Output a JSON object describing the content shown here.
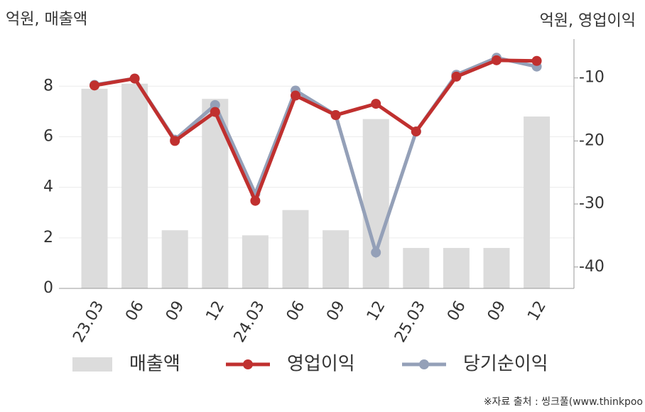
{
  "chart_data": {
    "type": "bar-line",
    "y_label": "억원, 매출액",
    "y2_label": "억원, 영업이익",
    "source": "※자료 출처 : 씽크풀(www.thinkpoo",
    "categories": [
      "23.03",
      "06",
      "09",
      "12",
      "24.03",
      "06",
      "09",
      "12",
      "25.03",
      "06",
      "09",
      "12"
    ],
    "ylim": [
      0,
      9.5
    ],
    "yticks": [
      0,
      2,
      4,
      6,
      8
    ],
    "y2lim": [
      -43.4,
      -5.3
    ],
    "y2ticks": [
      -10,
      -20,
      -30,
      -40
    ],
    "grid": true,
    "series": [
      {
        "name": "매출액",
        "type": "bar",
        "color": "#dcdcdc",
        "values": [
          7.9,
          8.1,
          2.3,
          7.5,
          2.1,
          3.1,
          2.3,
          6.7,
          1.6,
          1.6,
          1.6,
          6.8
        ]
      },
      {
        "name": "영업이익",
        "type": "line",
        "axis": "y2",
        "color": "#c0302f",
        "values": [
          -11.2,
          -10.1,
          -20.0,
          -15.4,
          -29.5,
          -12.8,
          -15.9,
          -14.1,
          -18.5,
          -9.8,
          -7.2,
          -7.3
        ]
      },
      {
        "name": "당기순이익",
        "type": "line",
        "axis": "y2",
        "color": "#94a0b8",
        "values": [
          -11.1,
          -10.1,
          -19.8,
          -14.3,
          -28.4,
          -12.0,
          -15.9,
          -37.7,
          -18.5,
          -9.5,
          -6.8,
          -8.2
        ]
      }
    ]
  }
}
